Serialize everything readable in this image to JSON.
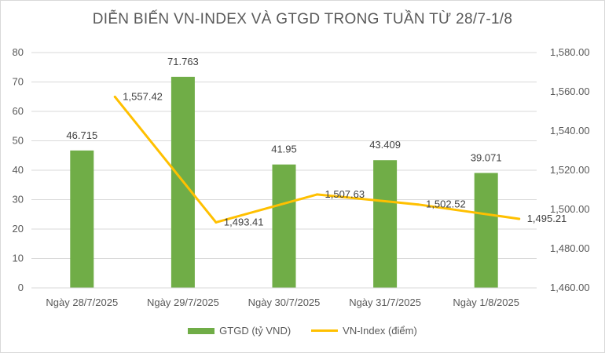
{
  "colors": {
    "bar": "#70ad47",
    "line": "#ffc000",
    "grid": "#d9d9d9",
    "text": "#595959"
  },
  "chart_data": {
    "type": "bar",
    "title": "DIỄN BIẾN VN-INDEX VÀ GTGD TRONG TUẦN TỪ 28/7-1/8",
    "categories": [
      "Ngày 28/7/2025",
      "Ngày 29/7/2025",
      "Ngày 30/7/2025",
      "Ngày 31/7/2025",
      "Ngày 1/8/2025"
    ],
    "series": [
      {
        "name": "GTGD (tỷ VND)",
        "type": "bar",
        "axis": "left",
        "values": [
          46.715,
          71.763,
          41.95,
          43.409,
          39.071
        ],
        "labels": [
          "46.715",
          "71.763",
          "41.95",
          "43.409",
          "39.071"
        ]
      },
      {
        "name": "VN-Index (điểm)",
        "type": "line",
        "axis": "right",
        "values": [
          1557.42,
          1493.41,
          1507.63,
          1502.52,
          1495.21
        ],
        "labels": [
          "1,557.42",
          "1,493.41",
          "1,507.63",
          "1,502.52",
          "1,495.21"
        ]
      }
    ],
    "ylim_left": [
      0,
      80
    ],
    "yticks_left": [
      "0",
      "10",
      "20",
      "30",
      "40",
      "50",
      "60",
      "70",
      "80"
    ],
    "ylim_right": [
      1460,
      1580
    ],
    "yticks_right": [
      "1,460.00",
      "1,480.00",
      "1,500.00",
      "1,520.00",
      "1,540.00",
      "1,560.00",
      "1,580.00"
    ],
    "grid": true,
    "legend_position": "bottom"
  }
}
